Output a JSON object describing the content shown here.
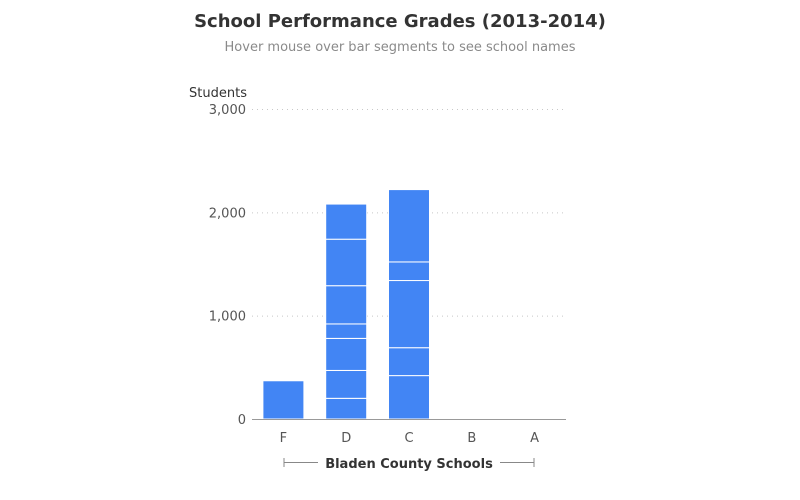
{
  "chart_data": {
    "type": "bar",
    "stacked": true,
    "title": "School Performance Grades (2013-2014)",
    "subtitle": "Hover mouse over bar segments to see school names",
    "ylabel": "Students",
    "xlabel": "Bladen County Schools",
    "ylim": [
      0,
      3000
    ],
    "yticks": [
      0,
      1000,
      2000,
      3000
    ],
    "ytick_labels": [
      "0",
      "1,000",
      "2,000",
      "3,000"
    ],
    "grid": true,
    "bar_color": "#4285f4",
    "categories": [
      "F",
      "D",
      "C",
      "B",
      "A"
    ],
    "segments": [
      [
        370
      ],
      [
        200,
        270,
        310,
        140,
        370,
        450,
        340
      ],
      [
        420,
        270,
        650,
        180,
        700
      ]
    ]
  }
}
